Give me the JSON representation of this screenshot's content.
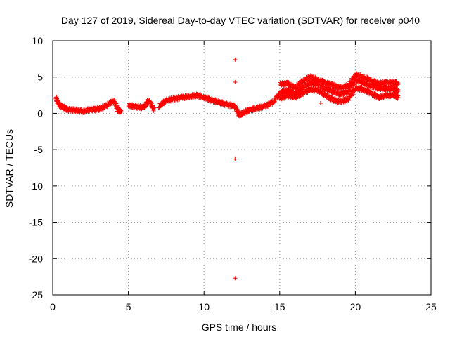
{
  "chart_data": {
    "type": "scatter",
    "title": "Day 127 of 2019, Sidereal Day-to-day VTEC variation (SDTVAR) for receiver p040",
    "xlabel": "GPS time / hours",
    "ylabel": "SDTVAR / TECUs",
    "xlim": [
      0,
      25
    ],
    "ylim": [
      -25,
      10
    ],
    "xticks": [
      0,
      5,
      10,
      15,
      20,
      25
    ],
    "yticks": [
      -25,
      -20,
      -15,
      -10,
      -5,
      0,
      5,
      10
    ],
    "grid": true,
    "marker": "+",
    "color": "#ff0000",
    "trace": [
      [
        0.2,
        2.0
      ],
      [
        0.4,
        1.2
      ],
      [
        0.7,
        0.8
      ],
      [
        1.0,
        0.5
      ],
      [
        1.5,
        0.4
      ],
      [
        2.0,
        0.3
      ],
      [
        2.5,
        0.5
      ],
      [
        3.0,
        0.6
      ],
      [
        3.5,
        1.0
      ],
      [
        4.0,
        1.8
      ],
      [
        4.3,
        0.4
      ],
      [
        4.5,
        0.3
      ],
      [
        5.0,
        1.1
      ],
      [
        5.5,
        0.9
      ],
      [
        6.0,
        0.8
      ],
      [
        6.3,
        1.8
      ],
      [
        6.7,
        0.5
      ],
      [
        7.0,
        1.0
      ],
      [
        7.5,
        1.8
      ],
      [
        8.0,
        2.0
      ],
      [
        8.5,
        2.2
      ],
      [
        9.0,
        2.3
      ],
      [
        9.5,
        2.5
      ],
      [
        10.0,
        2.2
      ],
      [
        10.5,
        1.8
      ],
      [
        11.0,
        1.5
      ],
      [
        11.5,
        1.2
      ],
      [
        12.0,
        1.0
      ],
      [
        12.3,
        -0.2
      ],
      [
        12.7,
        0.2
      ],
      [
        13.0,
        0.5
      ],
      [
        13.5,
        0.7
      ],
      [
        14.0,
        1.0
      ],
      [
        14.5,
        1.5
      ],
      [
        15.0,
        2.8
      ],
      [
        15.5,
        3.2
      ],
      [
        16.0,
        2.8
      ],
      [
        16.5,
        3.6
      ],
      [
        17.0,
        4.2
      ],
      [
        17.5,
        4.0
      ],
      [
        18.0,
        3.4
      ],
      [
        18.5,
        3.0
      ],
      [
        19.0,
        2.6
      ],
      [
        19.5,
        3.0
      ],
      [
        20.0,
        4.6
      ],
      [
        20.5,
        4.2
      ],
      [
        21.0,
        3.8
      ],
      [
        21.5,
        3.5
      ],
      [
        22.0,
        3.4
      ],
      [
        22.5,
        3.4
      ],
      [
        22.8,
        3.0
      ]
    ],
    "trace_upper": [
      [
        15.0,
        4.0
      ],
      [
        15.5,
        4.1
      ],
      [
        16.0,
        3.5
      ],
      [
        16.5,
        4.5
      ],
      [
        17.0,
        5.0
      ],
      [
        17.5,
        4.6
      ],
      [
        18.0,
        4.2
      ],
      [
        18.5,
        3.9
      ],
      [
        19.0,
        3.5
      ],
      [
        19.5,
        3.8
      ],
      [
        20.0,
        5.3
      ],
      [
        20.5,
        5.0
      ],
      [
        21.0,
        4.5
      ],
      [
        21.5,
        4.1
      ],
      [
        22.0,
        4.2
      ],
      [
        22.5,
        4.3
      ],
      [
        22.8,
        4.0
      ]
    ],
    "trace_lower": [
      [
        15.0,
        2.0
      ],
      [
        15.5,
        2.5
      ],
      [
        16.0,
        2.2
      ],
      [
        16.5,
        2.8
      ],
      [
        17.0,
        3.3
      ],
      [
        17.5,
        3.2
      ],
      [
        18.0,
        2.5
      ],
      [
        18.5,
        1.9
      ],
      [
        19.0,
        1.6
      ],
      [
        19.5,
        2.0
      ],
      [
        20.0,
        3.5
      ],
      [
        20.5,
        3.3
      ],
      [
        21.0,
        2.8
      ],
      [
        21.5,
        2.2
      ],
      [
        22.0,
        2.4
      ],
      [
        22.5,
        2.6
      ],
      [
        22.8,
        2.2
      ]
    ],
    "outliers": [
      [
        12.05,
        7.4
      ],
      [
        12.05,
        4.3
      ],
      [
        12.05,
        -6.3
      ],
      [
        12.05,
        -22.7
      ],
      [
        17.7,
        1.4
      ]
    ]
  }
}
